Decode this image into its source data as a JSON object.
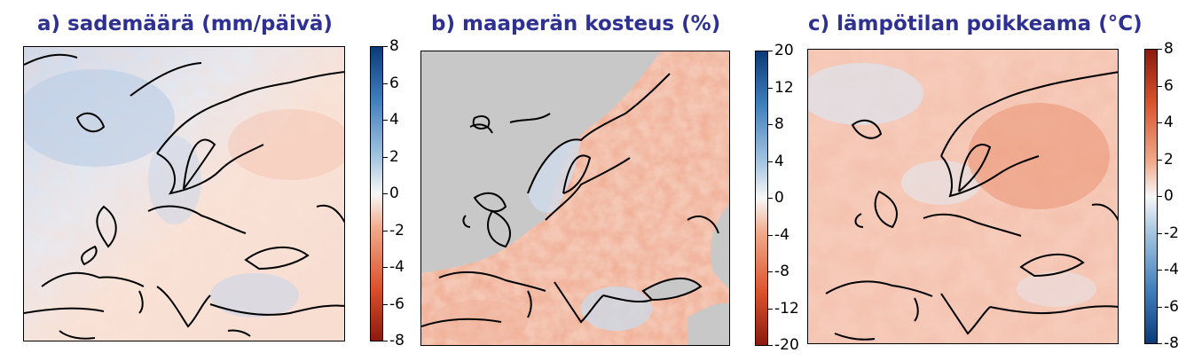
{
  "chart_data": [
    {
      "type": "heatmap",
      "title": "a) sademäärä (mm/päivä)",
      "colorbar": {
        "range": [
          -8,
          8
        ],
        "ticks": [
          8,
          6,
          4,
          2,
          0,
          -2,
          -4,
          -6,
          -8
        ],
        "colors": {
          "low": "#8b1a0e",
          "mid": "#f7f7f7",
          "high": "#0b3b78"
        }
      },
      "region": "Europe",
      "pattern": "wetter in north-west Atlantic and Scandinavia, drier in eastern Europe and Mediterranean"
    },
    {
      "type": "heatmap",
      "title": "b) maaperän kosteus (%)",
      "colorbar": {
        "range": [
          -20,
          20
        ],
        "ticks": [
          20,
          12,
          8,
          4,
          0,
          -4,
          -8,
          -12,
          -20
        ],
        "colors": {
          "low": "#8b1a0e",
          "mid": "#f7f7f7",
          "high": "#0b3b78"
        }
      },
      "region": "Europe",
      "ocean_color": "#c8c8c8",
      "pattern": "drier soil across most of Europe, wetter in Scandinavia and the Balkans"
    },
    {
      "type": "heatmap",
      "title": "c) lämpötilan poikkeama (°C)",
      "colorbar": {
        "range": [
          -8,
          8
        ],
        "ticks": [
          8,
          6,
          4,
          2,
          0,
          -2,
          -4,
          -6,
          -8
        ],
        "colors": {
          "low": "#0b3b78",
          "mid": "#f7f7f7",
          "high": "#8b1a0e"
        }
      },
      "region": "Europe",
      "pattern": "warmer everywhere, strongest in north-east Russia"
    }
  ]
}
